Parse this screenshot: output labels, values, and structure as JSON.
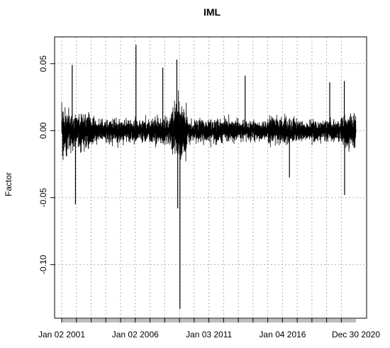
{
  "chart_data": {
    "type": "line",
    "title": "IML",
    "xlabel": "",
    "ylabel": "Factor",
    "x_range": [
      "2001-01-02",
      "2020-12-30"
    ],
    "ylim": [
      -0.14,
      0.07
    ],
    "grid": true,
    "grid_style": "dotted",
    "y_ticks": [
      {
        "value": 0.05,
        "label": "0.05"
      },
      {
        "value": 0.0,
        "label": "0.00"
      },
      {
        "value": -0.05,
        "label": "-0.05"
      },
      {
        "value": -0.1,
        "label": "-0.10"
      }
    ],
    "x_tick_labels": [
      {
        "date": "2001-01-02",
        "label": "Jan 02 2001"
      },
      {
        "date": "2006-01-02",
        "label": "Jan 02 2006"
      },
      {
        "date": "2011-01-03",
        "label": "Jan 03 2011"
      },
      {
        "date": "2016-01-04",
        "label": "Jan 04 2016"
      },
      {
        "date": "2020-12-30",
        "label": "Dec 30 2020"
      }
    ],
    "x_minor_ticks": "yearly",
    "series": [
      {
        "color": "#000000",
        "volatility_regimes": [
          {
            "from": "2001-01-02",
            "to": "2001-06-30",
            "typical_abs": 0.022
          },
          {
            "from": "2001-06-30",
            "to": "2002-12-31",
            "typical_abs": 0.016
          },
          {
            "from": "2002-12-31",
            "to": "2006-12-31",
            "typical_abs": 0.011
          },
          {
            "from": "2006-12-31",
            "to": "2008-06-30",
            "typical_abs": 0.013
          },
          {
            "from": "2008-06-30",
            "to": "2009-06-30",
            "typical_abs": 0.024
          },
          {
            "from": "2009-06-30",
            "to": "2012-12-31",
            "typical_abs": 0.011
          },
          {
            "from": "2012-12-31",
            "to": "2014-12-31",
            "typical_abs": 0.009
          },
          {
            "from": "2014-12-31",
            "to": "2016-12-31",
            "typical_abs": 0.012
          },
          {
            "from": "2016-12-31",
            "to": "2019-12-31",
            "typical_abs": 0.01
          },
          {
            "from": "2019-12-31",
            "to": "2020-12-30",
            "typical_abs": 0.016
          }
        ],
        "extremes": [
          {
            "date": "2001-09-20",
            "value": 0.049
          },
          {
            "date": "2001-12-10",
            "value": -0.055
          },
          {
            "date": "2006-01-20",
            "value": 0.064
          },
          {
            "date": "2007-11-15",
            "value": 0.047
          },
          {
            "date": "2008-10-30",
            "value": 0.053
          },
          {
            "date": "2008-11-20",
            "value": -0.058
          },
          {
            "date": "2009-01-15",
            "value": -0.133
          },
          {
            "date": "2013-06-20",
            "value": 0.041
          },
          {
            "date": "2016-06-24",
            "value": -0.035
          },
          {
            "date": "2019-03-20",
            "value": 0.036
          },
          {
            "date": "2020-03-16",
            "value": 0.037
          },
          {
            "date": "2020-03-23",
            "value": -0.048
          }
        ]
      }
    ]
  }
}
